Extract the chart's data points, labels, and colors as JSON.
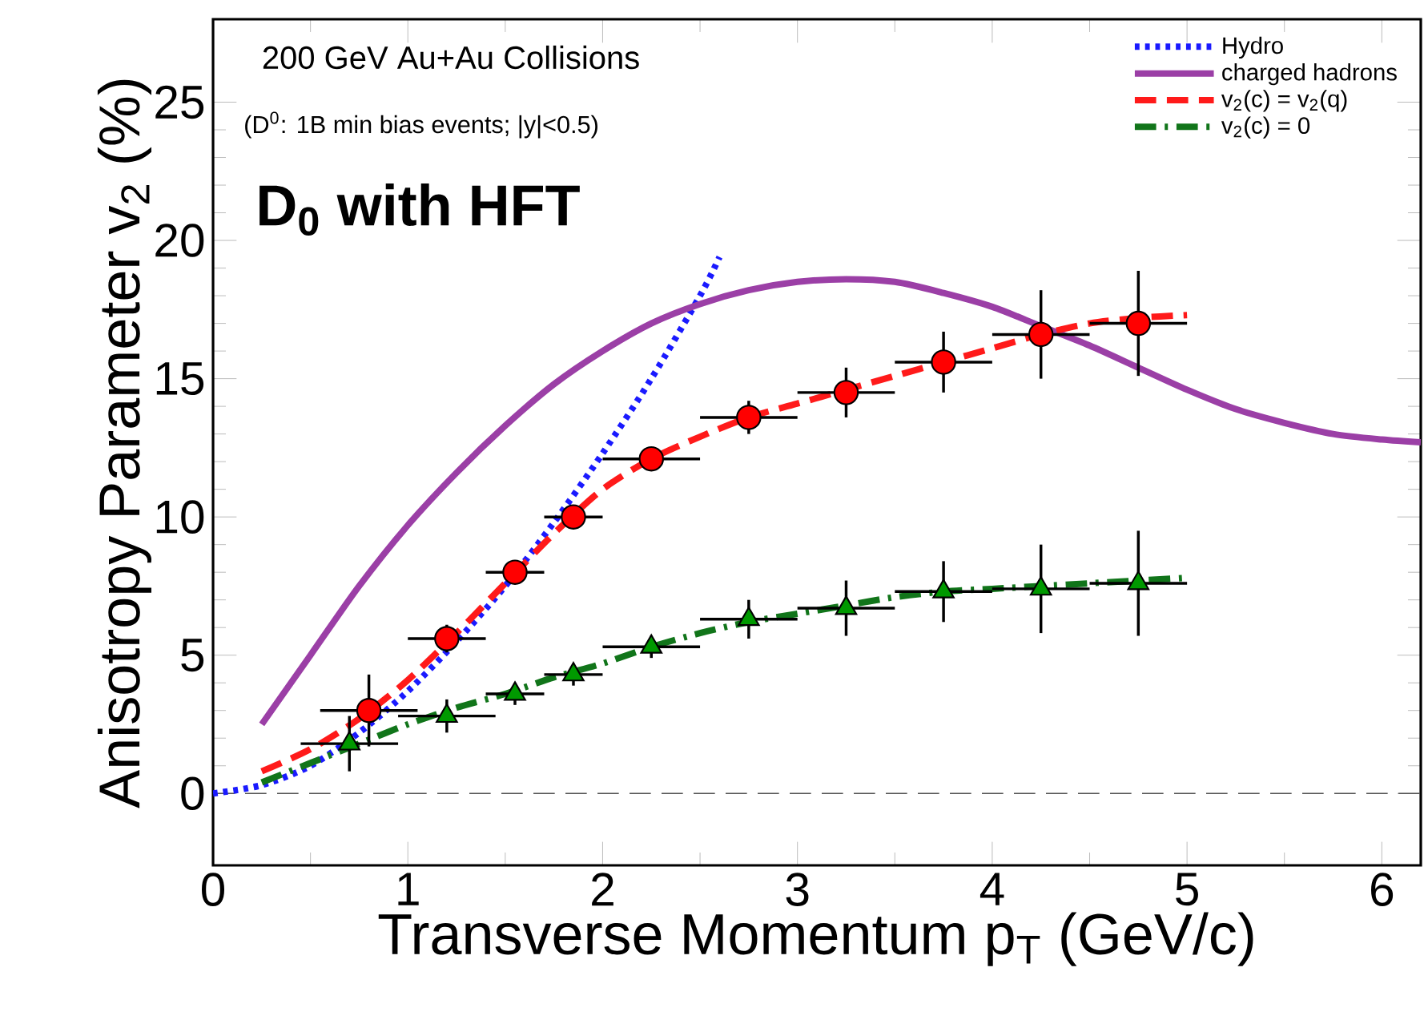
{
  "chart_data": {
    "type": "line",
    "xlabel": "Transverse Momentum p$_{T}$ (GeV/c)",
    "ylabel": "Anisotropy Parameter v$_{2}$ (%)",
    "annotations": [
      "200 GeV Au+Au Collisions",
      "(D$^{0}$: 1B min bias events; |y|<0.5)",
      "D$_{0}$ with HFT"
    ],
    "xlim": [
      0,
      6.2
    ],
    "ylim": [
      -2.6,
      28
    ],
    "xticks": [
      0,
      1,
      2,
      3,
      4,
      5,
      6
    ],
    "yticks": [
      0,
      5,
      10,
      15,
      20,
      25
    ],
    "legend": "top right",
    "ref_lines": [
      {
        "axis": "y",
        "value": 0,
        "color": "#555555",
        "line_style": "dashed"
      }
    ],
    "series": [
      {
        "name": "Hydro",
        "color": "#1a1aff",
        "line_style": "dotted",
        "marker": "none",
        "x": [
          0,
          0.25,
          0.5,
          0.75,
          1.0,
          1.25,
          1.5,
          1.75,
          2.0,
          2.25,
          2.5,
          2.6
        ],
        "values": [
          0,
          0.3,
          1.0,
          2.2,
          3.7,
          5.5,
          7.5,
          9.8,
          12.3,
          15.0,
          18.0,
          19.4
        ]
      },
      {
        "name": "charged hadrons",
        "color": "#9b3fa6",
        "line_style": "solid",
        "marker": "none",
        "x": [
          0.25,
          0.5,
          0.75,
          1.0,
          1.25,
          1.5,
          1.75,
          2.0,
          2.25,
          2.5,
          2.75,
          3.0,
          3.25,
          3.5,
          3.75,
          4.0,
          4.25,
          4.5,
          4.75,
          5.0,
          5.25,
          5.5,
          5.75,
          6.0,
          6.2
        ],
        "values": [
          2.5,
          5.0,
          7.5,
          9.7,
          11.6,
          13.3,
          14.8,
          16.0,
          17.0,
          17.7,
          18.2,
          18.5,
          18.6,
          18.5,
          18.1,
          17.6,
          16.9,
          16.2,
          15.4,
          14.6,
          13.9,
          13.4,
          13.0,
          12.8,
          12.7
        ]
      },
      {
        "name": "v$_{2}$(c) = v$_{2}$(q)",
        "color": "#ff1a1a",
        "line_style": "dashed",
        "marker": "none",
        "x": [
          0.25,
          0.5,
          0.75,
          1.0,
          1.25,
          1.5,
          1.75,
          2.0,
          2.25,
          2.5,
          2.75,
          3.0,
          3.25,
          3.5,
          3.75,
          4.0,
          4.25,
          4.5,
          4.75,
          5.0
        ],
        "values": [
          0.8,
          1.6,
          2.7,
          4.1,
          5.8,
          7.6,
          9.4,
          11.0,
          12.1,
          12.9,
          13.6,
          14.1,
          14.6,
          15.1,
          15.6,
          16.1,
          16.6,
          17.0,
          17.2,
          17.3
        ]
      },
      {
        "name": "v$_{2}$(c) = 0",
        "color": "#11751a",
        "line_style": "dashdot",
        "marker": "none",
        "x": [
          0.25,
          0.5,
          0.75,
          1.0,
          1.25,
          1.5,
          1.75,
          2.0,
          2.25,
          2.5,
          2.75,
          3.0,
          3.25,
          3.5,
          3.75,
          4.0,
          4.25,
          4.5,
          4.75,
          5.0
        ],
        "values": [
          0.4,
          1.1,
          1.8,
          2.5,
          3.1,
          3.6,
          4.2,
          4.7,
          5.3,
          5.8,
          6.2,
          6.5,
          6.8,
          7.1,
          7.3,
          7.4,
          7.5,
          7.6,
          7.7,
          7.8
        ]
      },
      {
        "type": "scatter",
        "color": "#ff0000",
        "marker": "circle",
        "x": [
          0.8,
          1.2,
          1.55,
          1.85,
          2.25,
          2.75,
          3.25,
          3.75,
          4.25,
          4.75
        ],
        "values": [
          3.0,
          5.6,
          8.0,
          10.0,
          12.1,
          13.6,
          14.5,
          15.6,
          16.6,
          17.0
        ],
        "errors": [
          1.3,
          0.5,
          0.4,
          0.3,
          0.4,
          0.6,
          0.9,
          1.1,
          1.6,
          1.9
        ],
        "xerrors": [
          0.25,
          0.2,
          0.15,
          0.15,
          0.25,
          0.25,
          0.25,
          0.25,
          0.25,
          0.25
        ]
      },
      {
        "type": "scatter",
        "color": "#009900",
        "marker": "triangle",
        "x": [
          0.7,
          1.2,
          1.55,
          1.85,
          2.25,
          2.75,
          3.25,
          3.75,
          4.25,
          4.75
        ],
        "values": [
          1.8,
          2.8,
          3.6,
          4.3,
          5.3,
          6.3,
          6.7,
          7.3,
          7.4,
          7.6
        ],
        "errors": [
          1.0,
          0.6,
          0.4,
          0.4,
          0.4,
          0.7,
          1.0,
          1.1,
          1.6,
          1.9
        ],
        "xerrors": [
          0.25,
          0.25,
          0.15,
          0.15,
          0.25,
          0.25,
          0.25,
          0.25,
          0.25,
          0.25
        ]
      }
    ]
  }
}
